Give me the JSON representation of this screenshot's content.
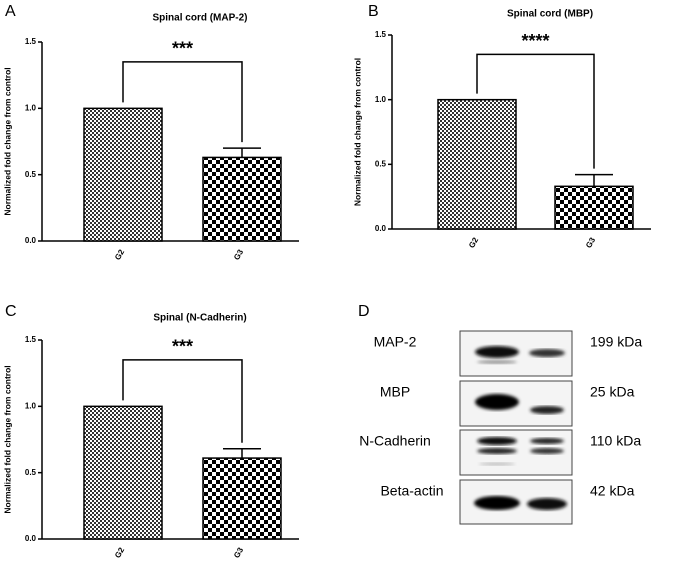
{
  "chart_data": [
    {
      "type": "bar",
      "panel_label": "A",
      "title": "Spinal cord (MAP-2)",
      "ylabel": "Normalized fold change from control",
      "categories": [
        "G2",
        "G3"
      ],
      "values": [
        1.0,
        0.63
      ],
      "errors": [
        null,
        0.07
      ],
      "annotation": "***",
      "ylim": [
        0,
        1.5
      ],
      "yticks": [
        {
          "value": 0,
          "label": "0.0"
        },
        0.5,
        {
          "value": 1,
          "label": "1.0"
        },
        1.5
      ]
    },
    {
      "type": "bar",
      "panel_label": "B",
      "title": "Spinal cord (MBP)",
      "ylabel": "Normalized fold change from control",
      "categories": [
        "G2",
        "G3"
      ],
      "values": [
        1.0,
        0.33
      ],
      "errors": [
        null,
        0.09
      ],
      "annotation": "****",
      "ylim": [
        0,
        1.5
      ],
      "yticks": [
        {
          "value": 0,
          "label": "0.0"
        },
        0.5,
        {
          "value": 1,
          "label": "1.0"
        },
        1.5
      ]
    },
    {
      "type": "bar",
      "panel_label": "C",
      "title": "Spinal (N-Cadherin)",
      "ylabel": "Normalized fold change from control",
      "categories": [
        "G2",
        "G3"
      ],
      "values": [
        1.0,
        0.61
      ],
      "errors": [
        null,
        0.07
      ],
      "annotation": "***",
      "ylim": [
        0,
        1.5
      ],
      "yticks": [
        {
          "value": 0,
          "label": "0.0"
        },
        0.5,
        {
          "value": 1,
          "label": "1.0"
        },
        1.5
      ]
    }
  ],
  "blot": {
    "panel_label": "D",
    "rows": [
      {
        "protein": "MAP-2",
        "size": "199 kDa"
      },
      {
        "protein": "MBP",
        "size": "25 kDa"
      },
      {
        "protein": "N-Cadherin",
        "size": "110 kDa"
      },
      {
        "protein": "Beta-actin",
        "size": "42 kDa"
      }
    ]
  }
}
